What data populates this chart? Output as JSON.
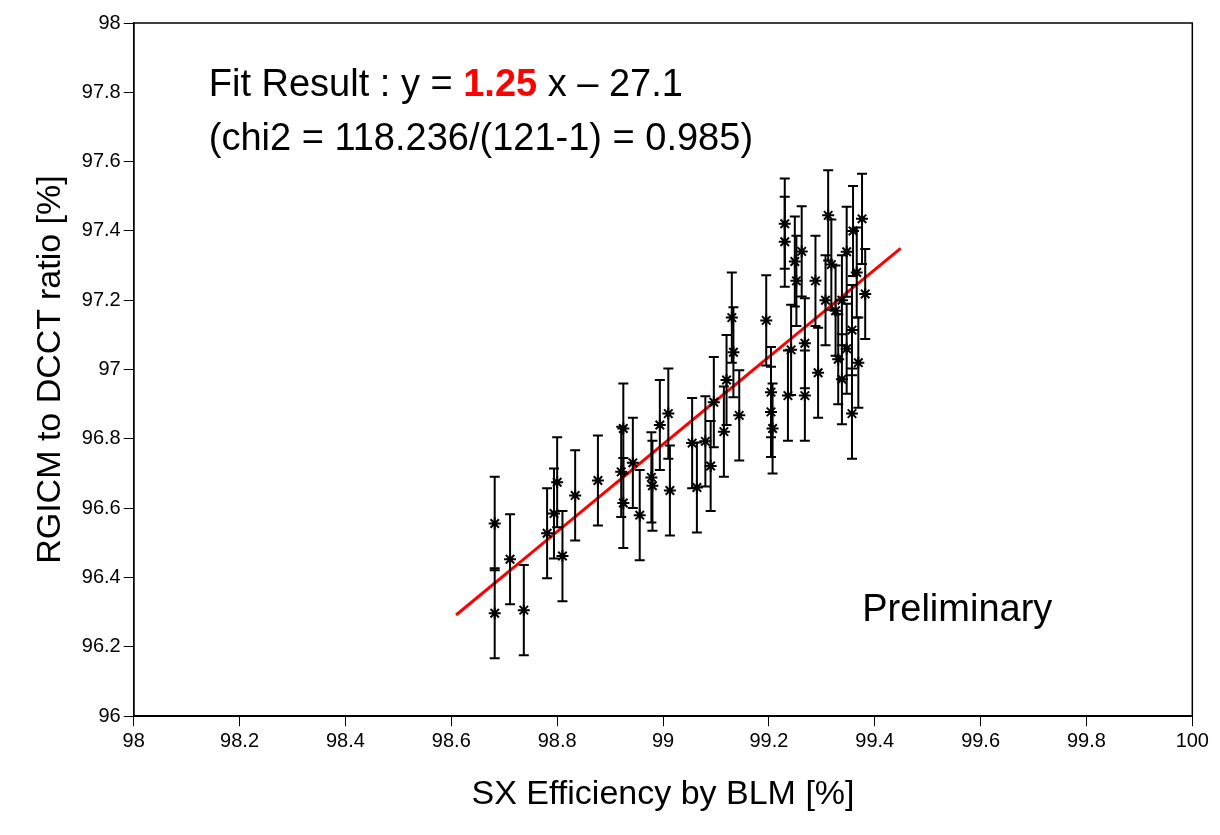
{
  "chart_data": {
    "type": "scatter",
    "xlabel": "SX Efficiency by BLM [%]",
    "ylabel": "RGICM to DCCT ratio [%]",
    "xlim": [
      98,
      100
    ],
    "xticks": [
      98,
      98.2,
      98.4,
      98.6,
      98.8,
      99,
      99.2,
      99.4,
      99.6,
      99.8,
      100
    ],
    "ylim": [
      96,
      98
    ],
    "yticks": [
      96,
      96.2,
      96.4,
      96.6,
      96.8,
      97,
      97.2,
      97.4,
      97.6,
      97.8,
      98
    ],
    "grid": false,
    "legend": false,
    "marker": "cross",
    "annotations": [
      "Fit Result : y = 1.25 x – 27.1",
      "(chi2 = 118.236/(121-1) = 0.985)",
      "Preliminary"
    ],
    "series": [
      {
        "color": "#000000",
        "x": [
          98.682,
          98.682,
          98.711,
          98.737,
          98.781,
          98.794,
          98.8,
          98.81,
          98.834,
          98.877,
          98.925,
          98.921,
          98.925,
          98.943,
          98.956,
          98.978,
          98.98,
          98.994,
          99.01,
          99.013,
          99.055,
          99.064,
          99.08,
          99.09,
          99.096,
          99.115,
          99.144,
          99.12,
          99.13,
          99.133,
          99.195,
          99.204,
          99.204,
          99.207,
          99.23,
          99.23,
          99.236,
          99.249,
          99.252,
          99.262,
          99.268,
          99.293,
          99.268,
          99.242,
          99.312,
          99.318,
          99.338,
          99.331,
          99.357,
          99.376,
          99.382,
          99.369,
          99.338,
          99.347,
          99.357,
          99.326,
          99.366,
          99.347,
          99.307,
          99.288,
          99.359
        ],
        "values": [
          96.556,
          96.297,
          96.453,
          96.306,
          96.528,
          96.585,
          96.675,
          96.462,
          96.637,
          96.68,
          96.83,
          96.705,
          96.615,
          96.731,
          96.58,
          96.689,
          96.665,
          96.84,
          96.873,
          96.651,
          96.788,
          96.66,
          96.793,
          96.722,
          96.906,
          96.821,
          96.868,
          96.97,
          97.15,
          97.05,
          97.142,
          96.935,
          96.878,
          96.83,
          97.421,
          97.369,
          96.925,
          97.312,
          97.256,
          97.341,
          96.925,
          96.991,
          97.076,
          97.057,
          97.445,
          97.303,
          97.2,
          97.03,
          96.873,
          97.435,
          97.218,
          97.02,
          96.972,
          97.34,
          97.114,
          97.17,
          97.28,
          97.06,
          97.2,
          97.256,
          97.4
        ],
        "errors": [
          0.135,
          0.13,
          0.13,
          0.13,
          0.13,
          0.13,
          0.13,
          0.13,
          0.13,
          0.13,
          0.13,
          0.13,
          0.13,
          0.13,
          0.13,
          0.13,
          0.13,
          0.13,
          0.13,
          0.13,
          0.13,
          0.13,
          0.13,
          0.13,
          0.13,
          0.13,
          0.13,
          0.13,
          0.13,
          0.13,
          0.13,
          0.13,
          0.13,
          0.13,
          0.13,
          0.13,
          0.13,
          0.13,
          0.13,
          0.13,
          0.13,
          0.13,
          0.13,
          0.13,
          0.13,
          0.13,
          0.13,
          0.13,
          0.13,
          0.13,
          0.13,
          0.13,
          0.13,
          0.13,
          0.13,
          0.13,
          0.13,
          0.13,
          0.13,
          0.13,
          0.13
        ]
      },
      {
        "type": "line",
        "color": "#ff0000",
        "marker": "none",
        "x": [
          98.609,
          99.449
        ],
        "values": [
          96.292,
          97.35
        ]
      }
    ]
  }
}
